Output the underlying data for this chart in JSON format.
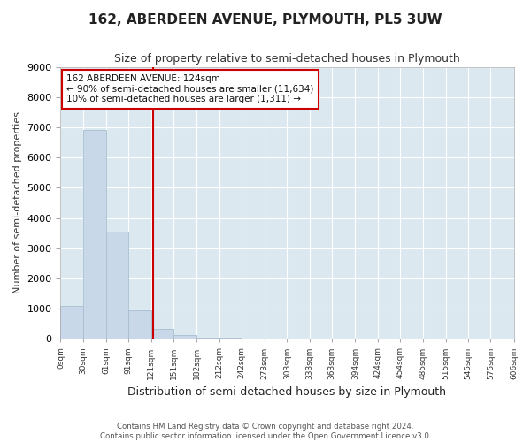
{
  "title": "162, ABERDEEN AVENUE, PLYMOUTH, PL5 3UW",
  "subtitle": "Size of property relative to semi-detached houses in Plymouth",
  "xlabel": "Distribution of semi-detached houses by size in Plymouth",
  "ylabel": "Number of semi-detached properties",
  "bar_color": "#c8d8e8",
  "bar_edge_color": "#a8bfd0",
  "background_color": "#dce8f0",
  "fig_background_color": "#f0f4f8",
  "grid_color": "#ffffff",
  "property_line_x": 124,
  "property_line_color": "#cc0000",
  "annotation_text": "162 ABERDEEN AVENUE: 124sqm\n← 90% of semi-detached houses are smaller (11,634)\n10% of semi-detached houses are larger (1,311) →",
  "annotation_box_color": "#cc0000",
  "bin_edges": [
    0,
    30,
    61,
    91,
    121,
    151,
    182,
    212,
    242,
    273,
    303,
    333,
    363,
    394,
    424,
    454,
    485,
    515,
    545,
    575,
    606
  ],
  "bar_heights": [
    1100,
    6900,
    3550,
    950,
    330,
    130,
    50,
    50,
    0,
    0,
    0,
    0,
    0,
    0,
    0,
    0,
    0,
    0,
    0,
    0
  ],
  "ylim": [
    0,
    9000
  ],
  "yticks": [
    0,
    1000,
    2000,
    3000,
    4000,
    5000,
    6000,
    7000,
    8000,
    9000
  ],
  "footer_text": "Contains HM Land Registry data © Crown copyright and database right 2024.\nContains public sector information licensed under the Open Government Licence v3.0.",
  "tick_labels": [
    "0sqm",
    "30sqm",
    "61sqm",
    "91sqm",
    "121sqm",
    "151sqm",
    "182sqm",
    "212sqm",
    "242sqm",
    "273sqm",
    "303sqm",
    "333sqm",
    "363sqm",
    "394sqm",
    "424sqm",
    "454sqm",
    "485sqm",
    "515sqm",
    "545sqm",
    "575sqm",
    "606sqm"
  ]
}
